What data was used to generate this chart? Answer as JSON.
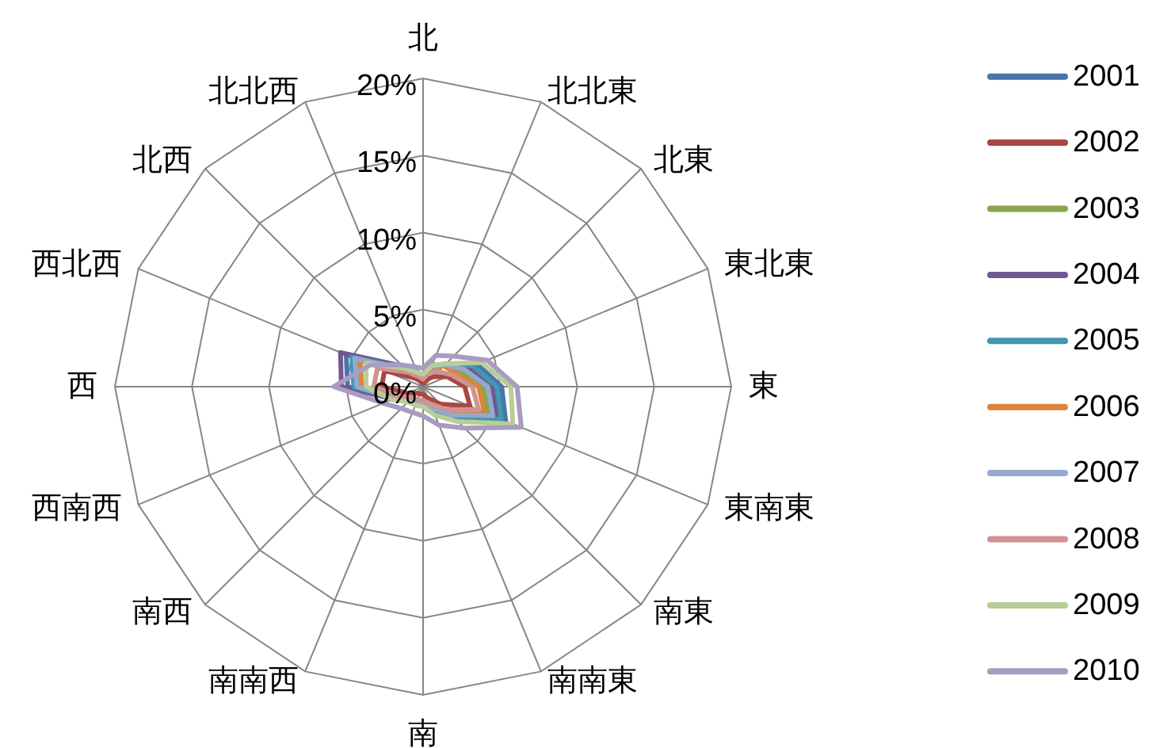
{
  "chart_data": {
    "type": "radar",
    "categories": [
      "北",
      "北北東",
      "北東",
      "東北東",
      "東",
      "東南東",
      "南東",
      "南南東",
      "南",
      "南南西",
      "南西",
      "西南西",
      "西",
      "西北西",
      "北西",
      "北北西"
    ],
    "ylim": [
      0,
      20
    ],
    "yticks": [
      {
        "value": 0,
        "label": "0%"
      },
      {
        "value": 5,
        "label": "5%"
      },
      {
        "value": 10,
        "label": "10%"
      },
      {
        "value": 15,
        "label": "15%"
      },
      {
        "value": 20,
        "label": "20%"
      }
    ],
    "grid": true,
    "legend": "right",
    "series": [
      {
        "name": "2001",
        "color": "#4a74aa",
        "values": [
          0.6,
          1.4,
          2.0,
          3.8,
          5.1,
          5.8,
          2.7,
          1.5,
          1.0,
          1.1,
          1.3,
          2.0,
          4.9,
          5.4,
          1.8,
          1.0
        ]
      },
      {
        "name": "2002",
        "color": "#aa4643",
        "values": [
          0.2,
          0.5,
          0.9,
          1.7,
          2.7,
          3.3,
          1.6,
          0.8,
          0.5,
          0.5,
          0.6,
          1.1,
          2.7,
          2.7,
          0.8,
          0.4
        ]
      },
      {
        "name": "2003",
        "color": "#89a54e",
        "values": [
          0.6,
          1.3,
          1.9,
          2.6,
          3.9,
          4.6,
          2.6,
          1.4,
          1.0,
          1.0,
          1.2,
          2.0,
          4.1,
          4.6,
          1.6,
          1.0
        ]
      },
      {
        "name": "2004",
        "color": "#71588f",
        "values": [
          0.6,
          1.4,
          2.0,
          3.2,
          4.5,
          5.2,
          2.7,
          1.5,
          1.1,
          1.1,
          1.3,
          2.1,
          5.3,
          5.8,
          1.9,
          1.1
        ]
      },
      {
        "name": "2005",
        "color": "#4198af",
        "values": [
          0.6,
          1.5,
          2.1,
          3.5,
          4.8,
          5.5,
          2.8,
          1.6,
          1.1,
          1.1,
          1.3,
          2.0,
          4.5,
          5.0,
          1.7,
          1.0
        ]
      },
      {
        "name": "2006",
        "color": "#db843d",
        "values": [
          0.5,
          1.3,
          1.9,
          2.3,
          3.6,
          4.3,
          2.5,
          1.4,
          1.0,
          1.0,
          1.2,
          1.9,
          4.0,
          4.4,
          1.6,
          0.9
        ]
      },
      {
        "name": "2007",
        "color": "#93a9cf",
        "values": [
          0.6,
          1.4,
          2.0,
          2.9,
          4.2,
          4.9,
          2.6,
          1.5,
          1.0,
          1.0,
          1.2,
          2.0,
          4.3,
          4.8,
          1.6,
          1.0
        ]
      },
      {
        "name": "2008",
        "color": "#d19392",
        "values": [
          0.5,
          1.0,
          1.4,
          2.0,
          3.2,
          3.9,
          2.1,
          1.2,
          0.9,
          0.9,
          1.0,
          1.6,
          3.2,
          3.2,
          1.3,
          0.7
        ]
      },
      {
        "name": "2009",
        "color": "#b9cd96",
        "values": [
          0.8,
          1.5,
          2.1,
          4.1,
          5.7,
          6.3,
          3.2,
          2.0,
          1.3,
          1.3,
          1.4,
          2.2,
          3.7,
          4.0,
          1.7,
          1.0
        ]
      },
      {
        "name": "2010",
        "color": "#a99bc2",
        "values": [
          1.2,
          2.2,
          2.8,
          4.5,
          6.1,
          6.9,
          3.8,
          2.7,
          1.9,
          1.8,
          2.0,
          2.8,
          5.8,
          3.7,
          2.0,
          1.4
        ]
      }
    ]
  }
}
